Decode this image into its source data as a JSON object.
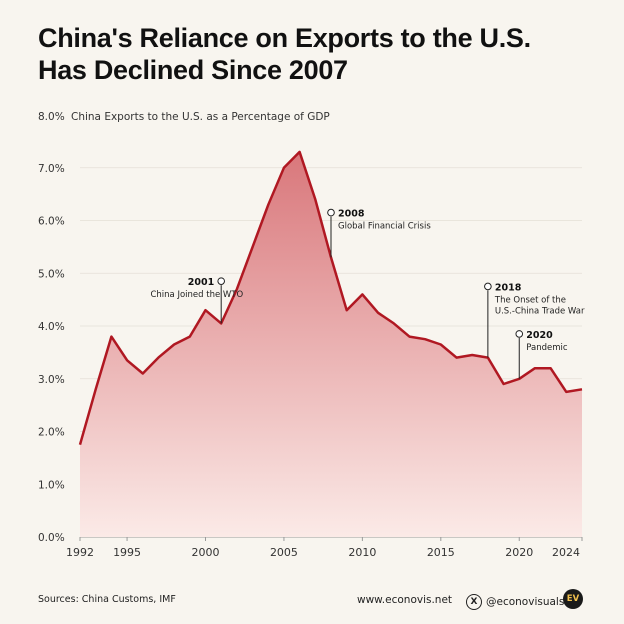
{
  "title": {
    "line1": "China's Reliance on Exports to the U.S.",
    "line2": "Has Declined Since 2007"
  },
  "chart_data": {
    "type": "area",
    "title": "China's Reliance on Exports to the U.S. Has Declined Since 2007",
    "ylabel": "China Exports to the U.S. as a Percentage of GDP",
    "xlabel": "",
    "ylim": [
      0,
      8
    ],
    "xlim": [
      1992,
      2024
    ],
    "y_ticks": [
      0,
      1,
      2,
      3,
      4,
      5,
      6,
      7,
      8
    ],
    "y_tick_labels": [
      "0.0%",
      "1.0%",
      "2.0%",
      "3.0%",
      "4.0%",
      "5.0%",
      "6.0%",
      "7.0%",
      "8.0%"
    ],
    "x_ticks": [
      1992,
      1995,
      2000,
      2005,
      2010,
      2015,
      2020,
      2024
    ],
    "x_tick_labels": [
      "1992",
      "1995",
      "2000",
      "2005",
      "2010",
      "2015",
      "2020",
      "2024"
    ],
    "grid": "horizontal",
    "series": [
      {
        "name": "China Exports to the U.S. as a Percentage of GDP",
        "x": [
          1992,
          1993,
          1994,
          1995,
          1996,
          1997,
          1998,
          1999,
          2000,
          2001,
          2002,
          2003,
          2004,
          2005,
          2006,
          2007,
          2008,
          2009,
          2010,
          2011,
          2012,
          2013,
          2014,
          2015,
          2016,
          2017,
          2018,
          2019,
          2020,
          2021,
          2022,
          2023,
          2024
        ],
        "values": [
          1.75,
          2.8,
          3.8,
          3.35,
          3.1,
          3.4,
          3.65,
          3.8,
          4.3,
          4.05,
          4.7,
          5.5,
          6.3,
          7.0,
          7.3,
          6.4,
          5.3,
          4.3,
          4.6,
          4.25,
          4.05,
          3.8,
          3.75,
          3.65,
          3.4,
          3.45,
          3.4,
          2.9,
          3.0,
          3.2,
          3.2,
          2.75,
          2.8
        ]
      }
    ],
    "annotations": [
      {
        "year": "2001",
        "text": [
          "China Joined the WTO"
        ]
      },
      {
        "year": "2008",
        "text": [
          "Global Financial Crisis"
        ]
      },
      {
        "year": "2018",
        "text": [
          "The Onset of the",
          "U.S.-China Trade War"
        ]
      },
      {
        "year": "2020",
        "text": [
          "Pandemic"
        ]
      }
    ],
    "colors": {
      "line": "#b01822",
      "fill_top": "#d9777b",
      "fill_bottom": "#fbeae7"
    }
  },
  "footer": {
    "sources": "Sources: China Customs, IMF",
    "website": "www.econovis.net",
    "x_icon": "x-logo-icon",
    "x_glyph": "X",
    "handle": "@econovisuals",
    "logo_text": "EV"
  }
}
